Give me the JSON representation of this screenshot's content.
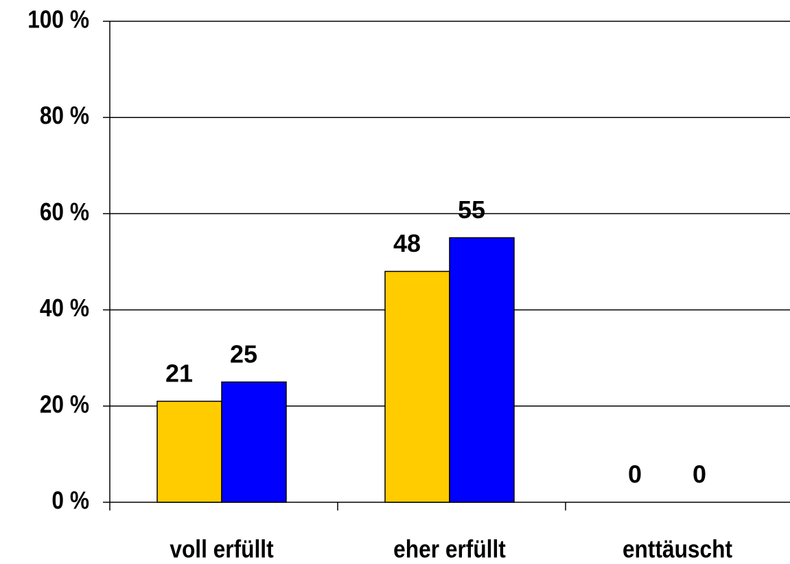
{
  "chart_data": {
    "type": "bar",
    "categories": [
      "voll erfüllt",
      "eher erfüllt",
      "enttäuscht"
    ],
    "series": [
      {
        "color": "#ffcc00",
        "values": [
          21,
          48,
          0
        ]
      },
      {
        "color": "#0000ff",
        "values": [
          25,
          55,
          0
        ]
      }
    ],
    "ylim": [
      0,
      100
    ],
    "yticks": [
      {
        "value": 0,
        "label": "0 %"
      },
      {
        "value": 20,
        "label": "20 %"
      },
      {
        "value": 40,
        "label": "40 %"
      },
      {
        "value": 60,
        "label": "60 %"
      },
      {
        "value": 80,
        "label": "80 %"
      },
      {
        "value": 100,
        "label": "100 %"
      }
    ],
    "grid": true
  }
}
